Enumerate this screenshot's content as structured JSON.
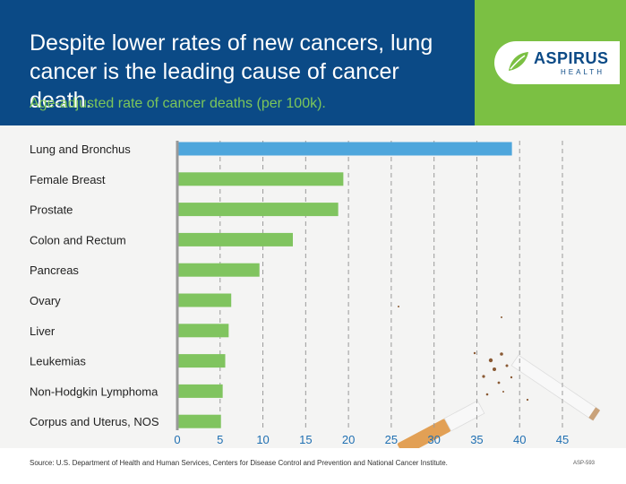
{
  "header": {
    "title": "Despite lower rates of new cancers, lung cancer is the leading cause of cancer death.",
    "subtitle": "Age-adjusted rate of cancer deaths (per 100k)."
  },
  "logo": {
    "name": "ASPIRUS",
    "tagline": "HEALTH",
    "icon": "leaf-icon"
  },
  "colors": {
    "header_bg": "#0b4a86",
    "accent_green": "#7bc043",
    "highlight_bar": "#4ea6dc",
    "bar": "#80c45f"
  },
  "chart_data": {
    "type": "bar",
    "orientation": "horizontal",
    "categories": [
      "Lung and Bronchus",
      "Female Breast",
      "Prostate",
      "Colon and Rectum",
      "Pancreas",
      "Ovary",
      "Liver",
      "Leukemias",
      "Non-Hodgkin Lymphoma",
      "Corpus and Uterus, NOS"
    ],
    "values": [
      39.1,
      19.4,
      18.8,
      13.5,
      9.6,
      6.3,
      6.0,
      5.6,
      5.3,
      5.1
    ],
    "highlight_index": 0,
    "xlim": [
      0,
      45
    ],
    "xticks": [
      "0",
      "5",
      "10",
      "15",
      "20",
      "25",
      "30",
      "35",
      "40",
      "45"
    ],
    "grid": "vertical dashed"
  },
  "footer": {
    "source": "Source: U.S. Department of Health and Human Services, Centers for Disease Control and Prevention and National Cancer Institute.",
    "code": "ASP-593"
  }
}
